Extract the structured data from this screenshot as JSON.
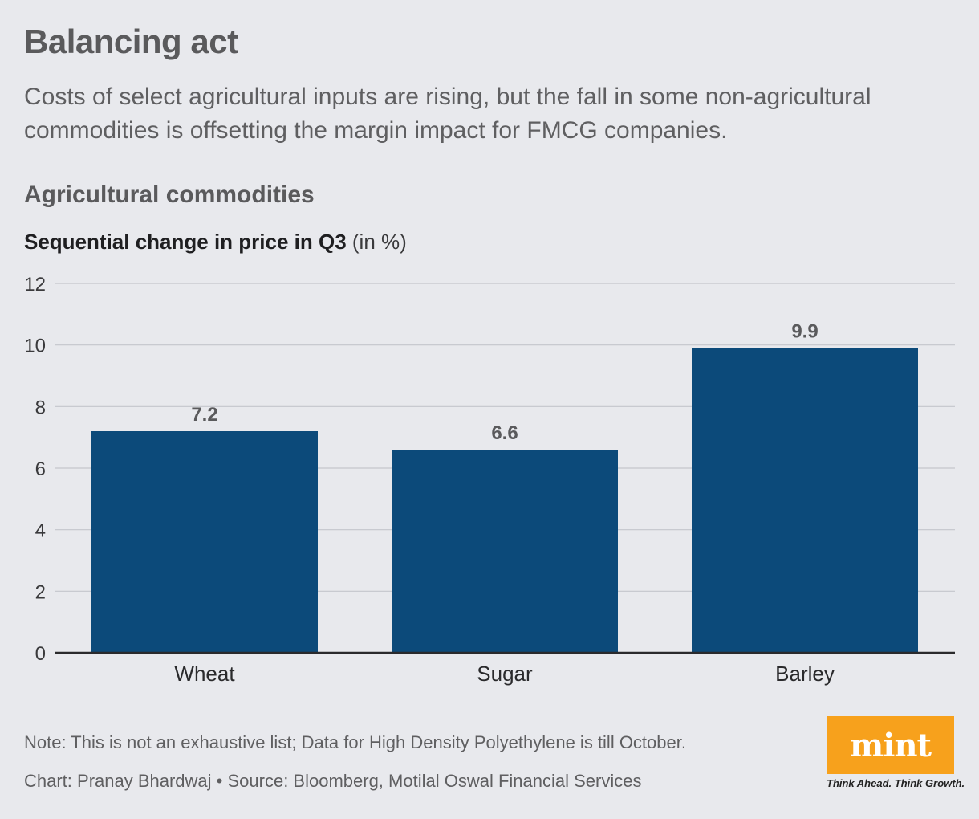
{
  "header": {
    "title": "Balancing act",
    "subtitle": "Costs of select agricultural inputs are rising, but the fall in some non-agricultural commodities is offsetting the margin impact for FMCG companies.",
    "section": "Agricultural commodities"
  },
  "chart_title": {
    "bold": "Sequential change in price in Q3",
    "unit": "(in %)"
  },
  "chart_data": {
    "type": "bar",
    "title": "Sequential change in price in Q3 (in %)",
    "categories": [
      "Wheat",
      "Sugar",
      "Barley"
    ],
    "values": [
      7.2,
      6.6,
      9.9
    ],
    "data_labels": [
      "7.2",
      "6.6",
      "9.9"
    ],
    "xlabel": "",
    "ylabel": "",
    "ylim": [
      0,
      12
    ],
    "yticks": [
      0,
      2,
      4,
      6,
      8,
      10,
      12
    ],
    "grid": true,
    "bar_color": "#0c4a7a",
    "label_color": "#5a5a5c"
  },
  "footer": {
    "note": "Note: This is not an exhaustive list; Data for High Density Polyethylene is till October.",
    "credit": "Chart: Pranay Bhardwaj • Source: Bloomberg, Motilal Oswal Financial Services",
    "logo": "mint",
    "tagline": "Think Ahead. Think Growth."
  },
  "colors": {
    "background": "#e8e9ed",
    "logo_bg": "#f7a11c"
  }
}
